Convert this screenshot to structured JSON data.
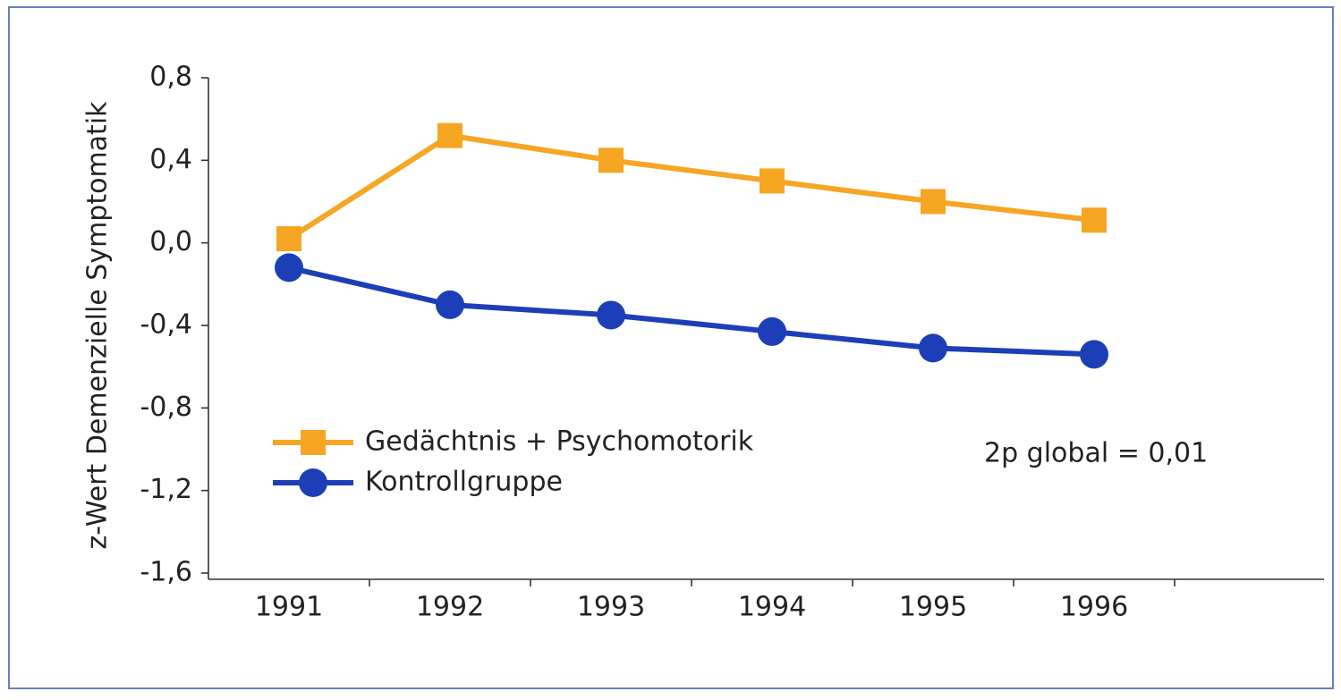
{
  "chart_data": {
    "type": "line",
    "y_label": "z-Wert Demenzielle Symptomatik",
    "categories": [
      "1991",
      "1992",
      "1993",
      "1994",
      "1995",
      "1996"
    ],
    "series": [
      {
        "name": "Gedächtnis + Psychomotorik",
        "color": "#f6a623",
        "marker": "square",
        "values": [
          0.02,
          0.52,
          0.4,
          0.3,
          0.2,
          0.11
        ]
      },
      {
        "name": "Kontrollgruppe",
        "color": "#1c3fb7",
        "marker": "circle",
        "values": [
          -0.12,
          -0.3,
          -0.35,
          -0.43,
          -0.51,
          -0.54
        ]
      }
    ],
    "ylim": [
      -1.6,
      0.8
    ],
    "yticks": [
      {
        "value": 0.8,
        "label": "0,8"
      },
      {
        "value": 0.4,
        "label": "0,4"
      },
      {
        "value": 0,
        "label": "0,0"
      },
      {
        "value": -0.4,
        "label": "-0,4"
      },
      {
        "value": -0.8,
        "label": "-0,8"
      },
      {
        "value": -1.2,
        "label": "-1,2"
      },
      {
        "value": -1.6,
        "label": "-1,6"
      }
    ],
    "annotation": "2p global = 0,01"
  }
}
